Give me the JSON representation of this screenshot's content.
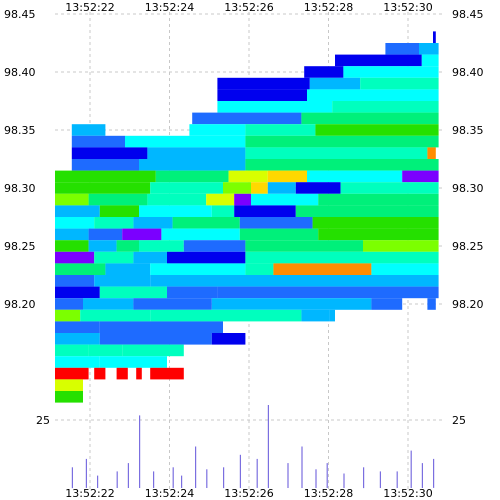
{
  "chart_data": {
    "type": "heatmap",
    "x_ticks": [
      "13:52:22",
      "13:52:24",
      "13:52:26",
      "13:52:28",
      "13:52:30"
    ],
    "y_ticks": [
      "98.45",
      "98.40",
      "98.35",
      "98.30",
      "98.25",
      "98.20"
    ],
    "ylim": [
      98.15,
      98.45
    ],
    "volume_tick": "25",
    "grid": true,
    "palette": [
      "#0000ee",
      "#1e6bff",
      "#00b7ff",
      "#00ffff",
      "#00ffbe",
      "#00f07a",
      "#25e000",
      "#7cff00",
      "#d8ff00",
      "#ffd800",
      "#ff8c00",
      "#ff0000",
      "#7b00ff"
    ],
    "rows": [
      {
        "p": 98.43,
        "segs": [
          [
            13.5,
            13.6,
            0
          ]
        ]
      },
      {
        "p": 98.42,
        "segs": [
          [
            11.8,
            13.0,
            1
          ],
          [
            13.0,
            13.7,
            2
          ]
        ]
      },
      {
        "p": 98.41,
        "segs": [
          [
            10.0,
            13.1,
            0
          ],
          [
            13.1,
            13.7,
            3
          ]
        ]
      },
      {
        "p": 98.4,
        "segs": [
          [
            8.9,
            10.3,
            0
          ],
          [
            10.3,
            13.7,
            3
          ]
        ]
      },
      {
        "p": 98.39,
        "segs": [
          [
            5.8,
            9.1,
            0
          ],
          [
            9.1,
            10.9,
            2
          ],
          [
            10.9,
            13.7,
            4
          ]
        ]
      },
      {
        "p": 98.38,
        "segs": [
          [
            5.8,
            9.0,
            0
          ],
          [
            9.0,
            13.7,
            3
          ]
        ]
      },
      {
        "p": 98.37,
        "segs": [
          [
            5.8,
            9.9,
            3
          ],
          [
            9.9,
            13.7,
            4
          ]
        ]
      },
      {
        "p": 98.36,
        "segs": [
          [
            4.9,
            8.8,
            1
          ],
          [
            8.8,
            13.7,
            5
          ]
        ]
      },
      {
        "p": 98.35,
        "segs": [
          [
            0.6,
            1.8,
            2
          ],
          [
            4.8,
            6.8,
            3
          ],
          [
            6.8,
            9.3,
            4
          ],
          [
            9.3,
            13.7,
            6
          ]
        ]
      },
      {
        "p": 98.34,
        "segs": [
          [
            0.6,
            2.5,
            1
          ],
          [
            2.5,
            6.8,
            3
          ],
          [
            6.8,
            13.7,
            5
          ]
        ]
      },
      {
        "p": 98.33,
        "segs": [
          [
            0.6,
            3.3,
            0
          ],
          [
            3.3,
            6.8,
            2
          ],
          [
            6.8,
            13.3,
            4
          ],
          [
            13.3,
            13.6,
            10
          ]
        ]
      },
      {
        "p": 98.32,
        "segs": [
          [
            0.6,
            3.0,
            1
          ],
          [
            3.0,
            6.8,
            2
          ],
          [
            6.8,
            13.7,
            5
          ]
        ]
      },
      {
        "p": 98.31,
        "segs": [
          [
            0.0,
            3.6,
            6
          ],
          [
            3.6,
            6.2,
            5
          ],
          [
            6.2,
            7.6,
            8
          ],
          [
            7.6,
            9.0,
            9
          ],
          [
            9.0,
            12.4,
            3
          ],
          [
            12.4,
            13.7,
            12
          ]
        ]
      },
      {
        "p": 98.3,
        "segs": [
          [
            0.0,
            3.4,
            6
          ],
          [
            3.4,
            6.0,
            4
          ],
          [
            6.0,
            7.0,
            7
          ],
          [
            7.0,
            7.6,
            9
          ],
          [
            7.6,
            8.6,
            2
          ],
          [
            8.6,
            10.2,
            0
          ],
          [
            10.2,
            13.7,
            4
          ]
        ]
      },
      {
        "p": 98.29,
        "segs": [
          [
            0.0,
            1.2,
            7
          ],
          [
            1.2,
            3.3,
            5
          ],
          [
            3.3,
            5.4,
            4
          ],
          [
            5.4,
            6.4,
            8
          ],
          [
            6.4,
            7.0,
            12
          ],
          [
            7.0,
            9.4,
            3
          ],
          [
            9.4,
            13.7,
            5
          ]
        ]
      },
      {
        "p": 98.28,
        "segs": [
          [
            0.0,
            1.6,
            2
          ],
          [
            1.6,
            3.0,
            6
          ],
          [
            3.0,
            5.6,
            3
          ],
          [
            5.6,
            6.4,
            4
          ],
          [
            6.4,
            8.6,
            0
          ],
          [
            8.6,
            13.7,
            5
          ]
        ]
      },
      {
        "p": 98.27,
        "segs": [
          [
            0.0,
            1.4,
            3
          ],
          [
            1.4,
            2.8,
            4
          ],
          [
            2.8,
            4.2,
            2
          ],
          [
            4.2,
            6.6,
            5
          ],
          [
            6.6,
            9.2,
            1
          ],
          [
            9.2,
            13.7,
            6
          ]
        ]
      },
      {
        "p": 98.26,
        "segs": [
          [
            0.0,
            1.2,
            2
          ],
          [
            1.2,
            2.4,
            1
          ],
          [
            2.4,
            3.8,
            12
          ],
          [
            3.8,
            6.6,
            3
          ],
          [
            6.6,
            9.4,
            5
          ],
          [
            9.4,
            13.7,
            6
          ]
        ]
      },
      {
        "p": 98.25,
        "segs": [
          [
            0.0,
            1.2,
            6
          ],
          [
            1.2,
            2.2,
            2
          ],
          [
            2.2,
            3.0,
            5
          ],
          [
            3.0,
            4.6,
            4
          ],
          [
            4.6,
            6.8,
            1
          ],
          [
            6.8,
            11.0,
            5
          ],
          [
            11.0,
            13.7,
            7
          ]
        ]
      },
      {
        "p": 98.24,
        "segs": [
          [
            0.0,
            1.4,
            12
          ],
          [
            1.4,
            2.8,
            4
          ],
          [
            2.8,
            4.0,
            2
          ],
          [
            4.0,
            6.8,
            0
          ],
          [
            6.8,
            13.7,
            4
          ]
        ]
      },
      {
        "p": 98.23,
        "segs": [
          [
            0.0,
            1.8,
            5
          ],
          [
            1.8,
            3.4,
            2
          ],
          [
            3.4,
            6.8,
            3
          ],
          [
            6.8,
            7.8,
            4
          ],
          [
            7.8,
            11.3,
            10
          ],
          [
            11.3,
            13.7,
            3
          ]
        ]
      },
      {
        "p": 98.22,
        "segs": [
          [
            0.0,
            1.4,
            1
          ],
          [
            1.4,
            3.4,
            2
          ],
          [
            3.4,
            7.0,
            2
          ],
          [
            7.0,
            13.7,
            2
          ]
        ]
      },
      {
        "p": 98.21,
        "segs": [
          [
            0.0,
            1.6,
            0
          ],
          [
            1.6,
            4.0,
            4
          ],
          [
            4.0,
            5.8,
            1
          ],
          [
            5.8,
            10.0,
            1
          ],
          [
            10.0,
            13.7,
            1
          ]
        ]
      },
      {
        "p": 98.2,
        "segs": [
          [
            0.0,
            1.0,
            1
          ],
          [
            1.0,
            2.8,
            2
          ],
          [
            2.8,
            5.6,
            1
          ],
          [
            5.6,
            11.3,
            2
          ],
          [
            11.3,
            12.4,
            1
          ],
          [
            13.3,
            13.6,
            1
          ]
        ]
      },
      {
        "p": 98.19,
        "segs": [
          [
            0.0,
            0.9,
            7
          ],
          [
            0.9,
            3.4,
            4
          ],
          [
            3.4,
            8.8,
            4
          ],
          [
            8.8,
            9.8,
            2
          ],
          [
            9.8,
            10.0,
            2
          ]
        ]
      },
      {
        "p": 98.18,
        "segs": [
          [
            0.0,
            1.6,
            1
          ],
          [
            1.6,
            6.0,
            1
          ]
        ]
      },
      {
        "p": 98.17,
        "segs": [
          [
            0.0,
            1.6,
            2
          ],
          [
            1.6,
            5.0,
            1
          ],
          [
            5.0,
            5.6,
            1
          ],
          [
            5.6,
            6.8,
            0
          ]
        ]
      },
      {
        "p": 98.16,
        "segs": [
          [
            0.0,
            1.2,
            4
          ],
          [
            1.2,
            2.4,
            4
          ],
          [
            2.4,
            4.6,
            4
          ]
        ]
      },
      {
        "p": 98.15,
        "segs": [
          [
            0.0,
            1.6,
            3
          ],
          [
            1.6,
            4.0,
            3
          ]
        ]
      },
      {
        "p": 98.14,
        "segs": [
          [
            0.0,
            1.2,
            11
          ],
          [
            1.4,
            1.8,
            11
          ],
          [
            2.2,
            2.6,
            11
          ],
          [
            2.9,
            3.1,
            11
          ],
          [
            3.4,
            4.6,
            11
          ]
        ]
      },
      {
        "p": 98.13,
        "segs": [
          [
            0.0,
            1.0,
            8
          ]
        ]
      },
      {
        "p": 98.12,
        "segs": [
          [
            0.0,
            1.0,
            6
          ]
        ]
      }
    ],
    "volume": [
      {
        "t": 0.6,
        "v": 10
      },
      {
        "t": 1.1,
        "v": 14
      },
      {
        "t": 1.5,
        "v": 6
      },
      {
        "t": 2.2,
        "v": 8
      },
      {
        "t": 2.6,
        "v": 12
      },
      {
        "t": 3.0,
        "v": 35
      },
      {
        "t": 3.5,
        "v": 8
      },
      {
        "t": 4.2,
        "v": 10
      },
      {
        "t": 4.5,
        "v": 6
      },
      {
        "t": 5.0,
        "v": 20
      },
      {
        "t": 5.4,
        "v": 9
      },
      {
        "t": 6.0,
        "v": 10
      },
      {
        "t": 6.6,
        "v": 16
      },
      {
        "t": 7.2,
        "v": 14
      },
      {
        "t": 7.6,
        "v": 40
      },
      {
        "t": 8.3,
        "v": 12
      },
      {
        "t": 8.8,
        "v": 20
      },
      {
        "t": 9.3,
        "v": 9
      },
      {
        "t": 9.7,
        "v": 12
      },
      {
        "t": 10.3,
        "v": 7
      },
      {
        "t": 11.0,
        "v": 10
      },
      {
        "t": 11.6,
        "v": 8
      },
      {
        "t": 12.2,
        "v": 8
      },
      {
        "t": 12.7,
        "v": 18
      },
      {
        "t": 13.1,
        "v": 12
      },
      {
        "t": 13.5,
        "v": 14
      }
    ]
  }
}
